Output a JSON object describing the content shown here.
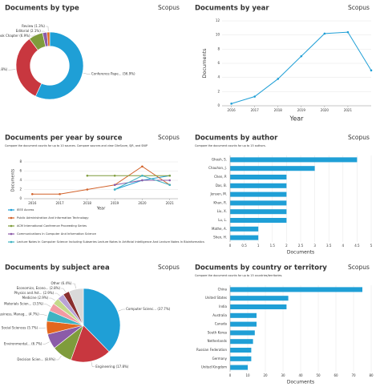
{
  "chart_data": [
    {
      "type": "pie",
      "donut": true,
      "title": "Documents by type",
      "logo": "Scopus",
      "categories": [
        "Conference Pape...",
        "Article",
        "Book Chapter",
        "Editorial",
        "Review"
      ],
      "values": [
        56.9,
        32.8,
        6.9,
        2.1,
        1.3
      ],
      "value_labels": [
        "(56.9%)",
        "(32.8%)",
        "(6.9%)",
        "(2.1%)",
        "(1.3%)"
      ],
      "colors": [
        "#1f9fd6",
        "#c8373f",
        "#7f9c3c",
        "#8b5ba8",
        "#e3671f"
      ]
    },
    {
      "type": "line",
      "title": "Documents by year",
      "logo": "Scopus",
      "x": [
        2016,
        2017,
        2018,
        2019,
        2020,
        2021,
        2022
      ],
      "values": [
        0.3,
        1.3,
        3.8,
        7,
        10.2,
        10.4,
        5
      ],
      "color": "#1f9fd6",
      "xlabel": "Year",
      "ylabel": "Documents",
      "xlim": [
        2015.6,
        2022
      ],
      "xticks": [
        2016,
        2017,
        2018,
        2019,
        2020,
        2021
      ],
      "ylim": [
        0,
        12
      ],
      "yticks": [
        0,
        2,
        4,
        6,
        8,
        10,
        12
      ],
      "grid": true
    },
    {
      "type": "line",
      "title": "Documents per year by source",
      "logo": "Scopus",
      "subtitle": "Compare the document counts for up to 10 sources. Compare sources and view CiteScore, SJR, and SNIP",
      "x": [
        2016,
        2017,
        2018,
        2019,
        2020,
        2021
      ],
      "xlabel": "Year",
      "ylabel": "Documents",
      "xlim": [
        2015.7,
        2021.3
      ],
      "xticks": [
        2016,
        2017,
        2018,
        2019,
        2020,
        2021
      ],
      "ylim": [
        0,
        8
      ],
      "yticks": [
        0,
        2,
        4,
        6,
        8
      ],
      "grid": true,
      "series": [
        {
          "name": "IEEE Access",
          "color": "#1f9fd6",
          "values": [
            null,
            null,
            null,
            2,
            4,
            5
          ]
        },
        {
          "name": "Public Administration And Information Technology",
          "color": "#d2622a",
          "values": [
            1,
            1,
            2,
            3,
            7,
            3
          ]
        },
        {
          "name": "ACM International Conference Proceeding Series",
          "color": "#7f9c3c",
          "values": [
            null,
            null,
            5,
            5,
            5,
            5
          ]
        },
        {
          "name": "Communications In Computer And Information Science",
          "color": "#8b5ba8",
          "values": [
            null,
            null,
            null,
            3,
            4,
            4
          ]
        },
        {
          "name": "Lecture Notes In Computer Science Including Subseries Lecture Notes In Artificial Intelligence And Lecture Notes In Bioinformatics",
          "color": "#3fb3c2",
          "values": [
            null,
            null,
            null,
            2,
            5,
            3
          ]
        }
      ]
    },
    {
      "type": "barh",
      "title": "Documents by author",
      "logo": "Scopus",
      "subtitle": "Compare the document counts for up to 15 authors.",
      "categories": [
        "Ghosh, S.",
        "Chauhan, J.",
        "Chen, P.",
        "Das, B.",
        "Jensen, M.",
        "Khan, R.",
        "Liu, X.",
        "Lu, L.",
        "Mathe, A.",
        "Shen, H."
      ],
      "values": [
        4.5,
        3,
        2,
        2,
        2,
        2,
        2,
        2,
        1,
        1
      ],
      "color": "#1f9fd6",
      "xlabel": "Documents",
      "xlim": [
        0,
        5
      ],
      "xticks": [
        0,
        0.5,
        1,
        1.5,
        2,
        2.5,
        3,
        3.5,
        4,
        4.5,
        5
      ],
      "grid": true
    },
    {
      "type": "pie",
      "donut": false,
      "title": "Documents by subject area",
      "logo": "Scopus",
      "categories": [
        "Computer Scienc...",
        "Engineering",
        "Decision Scien...",
        "Environmental...",
        "Social Sciences",
        "Business, Manag...",
        "Materials Scien...",
        "Medicine",
        "Physics and Ast...",
        "Economics, Econo...",
        "Other"
      ],
      "values": [
        37.7,
        17.8,
        8.9,
        6.7,
        5.7,
        4.7,
        3.5,
        2.9,
        2.9,
        2.8,
        6.4
      ],
      "value_labels": [
        "(37.7%)",
        "(17.8%)",
        "(8.9%)",
        "(6.7%)",
        "(5.7%)",
        "(4.7%)",
        "(3.5%)",
        "(2.9%)",
        "(2.9%)",
        "(2.8%)",
        "(6.4%)"
      ],
      "colors": [
        "#1f9fd6",
        "#c8373f",
        "#7f9c3c",
        "#8b5ba8",
        "#e3671f",
        "#3fb3c2",
        "#f29aa3",
        "#c4d98a",
        "#b9a3d6",
        "#8a2f2f",
        "#d9d9d9"
      ]
    },
    {
      "type": "barh",
      "title": "Documents by country or territory",
      "logo": "Scopus",
      "subtitle": "Compare the document counts for up to 15 countries/territories.",
      "categories": [
        "China",
        "United States",
        "India",
        "Australia",
        "Canada",
        "South Korea",
        "Netherlands",
        "Russian Federation",
        "Germany",
        "United Kingdom"
      ],
      "values": [
        75,
        33,
        32,
        15,
        15,
        14,
        13,
        12,
        12,
        10
      ],
      "color": "#1f9fd6",
      "xlabel": "Documents",
      "xlim": [
        0,
        80
      ],
      "xticks": [
        0,
        10,
        20,
        30,
        40,
        50,
        60,
        70,
        80
      ],
      "grid": true
    }
  ]
}
